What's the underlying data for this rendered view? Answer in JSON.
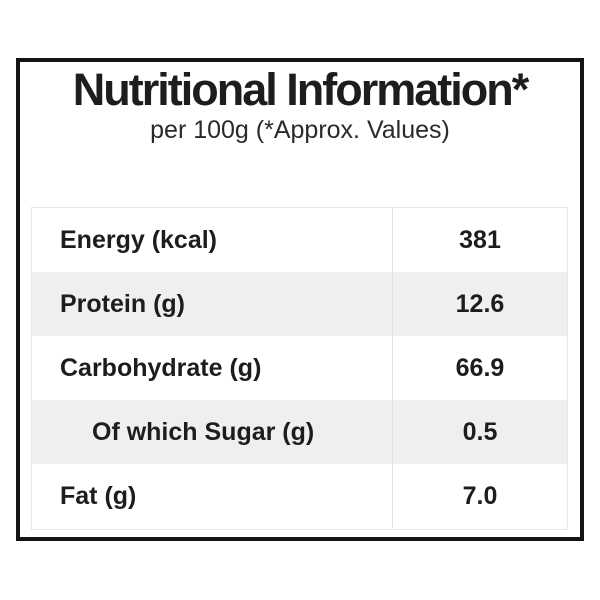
{
  "header": {
    "title": "Nutritional Information*",
    "subtitle": "per 100g (*Approx. Values)"
  },
  "table": {
    "rows": [
      {
        "label": "Energy (kcal)",
        "value": "381",
        "indent": false
      },
      {
        "label": "Protein (g)",
        "value": "12.6",
        "indent": false
      },
      {
        "label": "Carbohydrate (g)",
        "value": "66.9",
        "indent": false
      },
      {
        "label": "Of which Sugar (g)",
        "value": "0.5",
        "indent": true
      },
      {
        "label": "Fat (g)",
        "value": "7.0",
        "indent": false
      }
    ]
  },
  "colors": {
    "frame_border": "#141414",
    "text": "#1d1d1b",
    "row_alt_bg": "#efefef",
    "table_border": "#e6e6e6"
  }
}
